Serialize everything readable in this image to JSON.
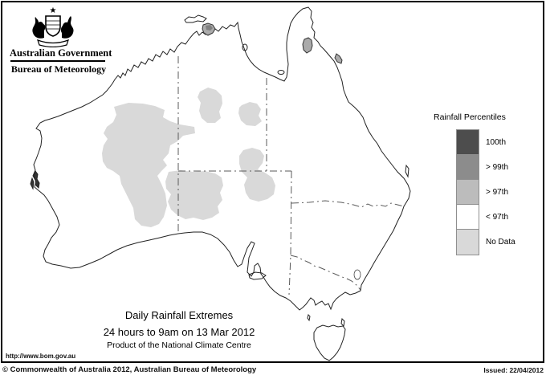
{
  "logo": {
    "crest_icon": "australian-coat-of-arms",
    "gov_label": "Australian Government",
    "bureau_label": "Bureau of Meteorology"
  },
  "legend": {
    "title": "Rainfall Percentiles",
    "items": [
      {
        "label": "100th",
        "color": "#4d4d4d"
      },
      {
        "label": "> 99th",
        "color": "#8c8c8c"
      },
      {
        "label": "> 97th",
        "color": "#bcbcbc"
      },
      {
        "label": "< 97th",
        "color": "#ffffff"
      },
      {
        "label": "No Data",
        "color": "#d9d9d9"
      }
    ]
  },
  "map": {
    "title_line1": "Daily Rainfall Extremes",
    "title_line2": "24 hours to 9am on 13 Mar 2012",
    "title_line3": "Product of the National Climate Centre",
    "colors": {
      "coastline": "#222222",
      "state_border": "#5a5a5a",
      "no_data_fill": "#d9d9d9",
      "extreme_fill": "#ababab",
      "extreme_core": "#808080",
      "frame": "#000000"
    }
  },
  "footer": {
    "url": "http://www.bom.gov.au",
    "copyright": "© Commonwealth of Australia 2012, Australian Bureau of Meteorology",
    "issued": "Issued: 22/04/2012"
  }
}
